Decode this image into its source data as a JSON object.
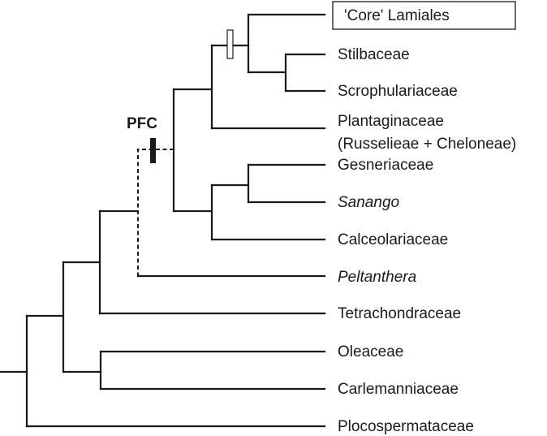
{
  "tree": {
    "taxa": [
      {
        "id": "core-lamiales",
        "label": "'Core' Lamiales",
        "italic": false,
        "boxed": true
      },
      {
        "id": "stilbaceae",
        "label": "Stilbaceae",
        "italic": false
      },
      {
        "id": "scrophulariaceae",
        "label": "Scrophulariaceae",
        "italic": false
      },
      {
        "id": "plantaginaceae",
        "label": "Plantaginaceae",
        "italic": false
      },
      {
        "id": "plantaginaceae-sub",
        "label": "(Russelieae + Cheloneae)",
        "italic": false
      },
      {
        "id": "gesneriaceae",
        "label": "Gesneriaceae",
        "italic": false
      },
      {
        "id": "sanango",
        "label": "Sanango",
        "italic": true
      },
      {
        "id": "calceolariaceae",
        "label": "Calceolariaceae",
        "italic": false
      },
      {
        "id": "peltanthera",
        "label": "Peltanthera",
        "italic": true
      },
      {
        "id": "tetrachondraceae",
        "label": "Tetrachondraceae",
        "italic": false
      },
      {
        "id": "oleaceae",
        "label": "Oleaceae",
        "italic": false
      },
      {
        "id": "carlemanniaceae",
        "label": "Carlemanniaceae",
        "italic": false
      },
      {
        "id": "plocospermataceae",
        "label": "Plocospermataceae",
        "italic": false
      }
    ],
    "markers": {
      "pfc_label": "PFC"
    },
    "colors": {
      "line": "#1a1a1a",
      "background": "#ffffff"
    }
  }
}
